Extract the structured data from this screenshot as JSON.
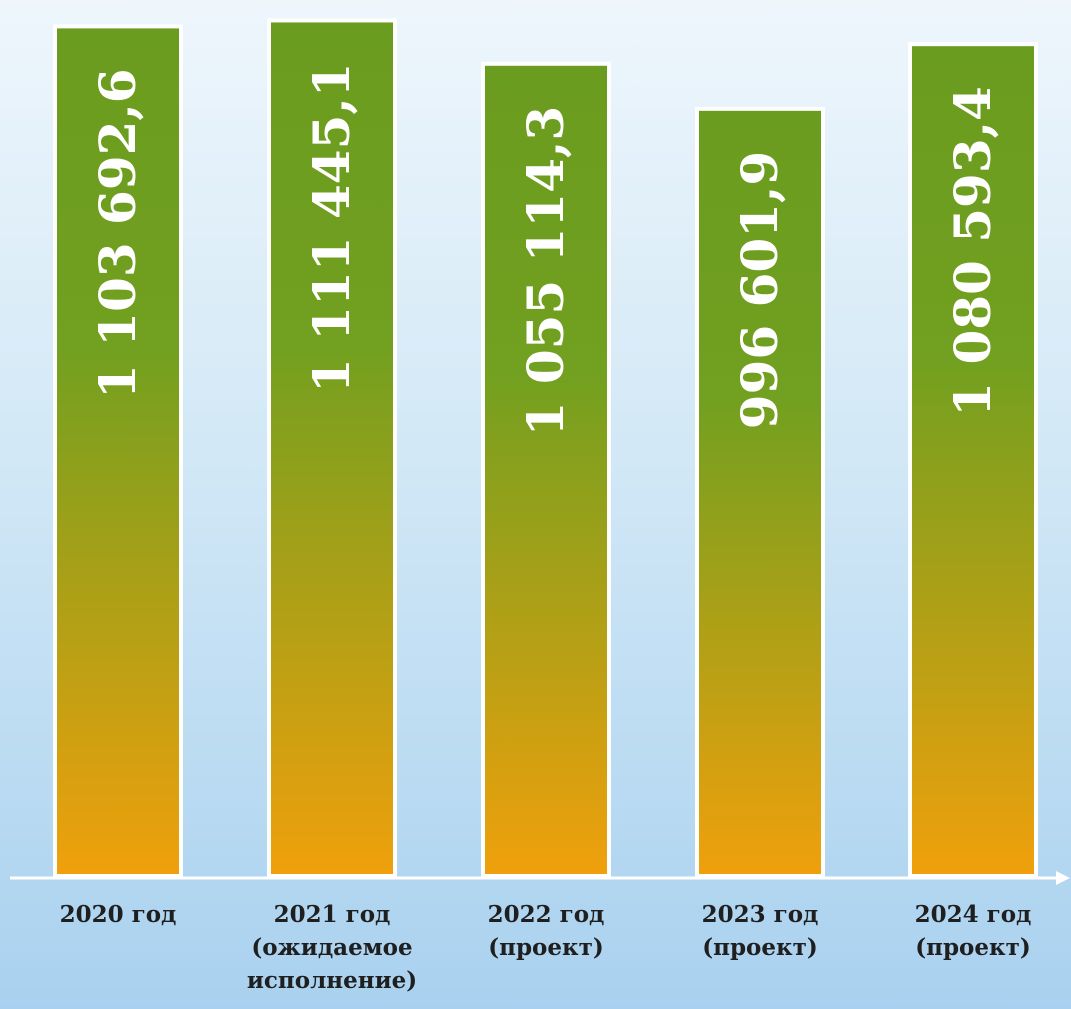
{
  "chart_data": {
    "type": "bar",
    "categories": [
      [
        "2020 год"
      ],
      [
        "2021 год",
        "(ожидаемое",
        "исполнение)"
      ],
      [
        "2022 год",
        "(проект)"
      ],
      [
        "2023 год",
        "(проект)"
      ],
      [
        "2024 год",
        "(проект)"
      ]
    ],
    "values": [
      1103692.6,
      1111445.1,
      1055114.3,
      996601.9,
      1080593.4
    ],
    "value_labels": [
      "1 103 692,6",
      "1 111 445,1",
      "1 055 114,3",
      "996 601,9",
      "1 080 593,4"
    ],
    "title": "",
    "xlabel": "",
    "ylabel": "",
    "ylim": [
      0,
      1125000
    ],
    "grid": false,
    "legend": "none",
    "bar_gradient_top": "#6a9c1f",
    "bar_gradient_bottom": "#f0a00c",
    "bar_border": "#ffffff",
    "label_color": "#ffffff",
    "axis_color": "#ffffff"
  }
}
